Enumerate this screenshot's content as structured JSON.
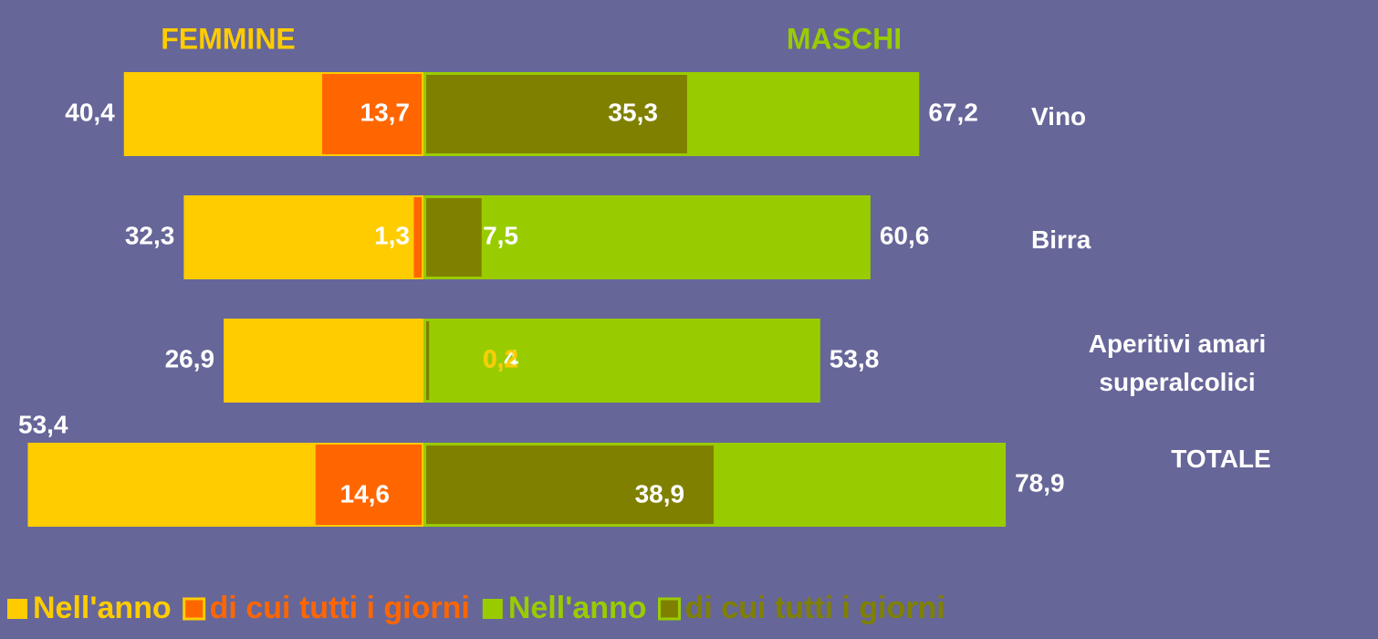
{
  "chart_data": {
    "type": "butterfly-bar",
    "left_title": "FEMMINE",
    "right_title": "MASCHI",
    "categories": [
      "Vino",
      "Birra",
      "Aperitivi amari superalcolici",
      "TOTALE"
    ],
    "series": [
      {
        "name": "Nell'anno",
        "color": "#ffcc00",
        "side": "left",
        "values": [
          40.4,
          32.3,
          26.9,
          53.4
        ],
        "value_labels": [
          "40,4",
          "32,3",
          "26,9",
          "53,4"
        ]
      },
      {
        "name": "di cui tutti i giorni",
        "color": "#ff6600",
        "side": "left",
        "values": [
          13.7,
          1.3,
          0.2,
          14.6
        ],
        "value_labels": [
          "13,7",
          "1,3",
          "0,2",
          "14,6"
        ]
      },
      {
        "name": "Nell'anno",
        "color": "#99cc00",
        "side": "right",
        "values": [
          67.2,
          60.6,
          53.8,
          78.9
        ],
        "value_labels": [
          "67,2",
          "60,6",
          "53,8",
          "78,9"
        ]
      },
      {
        "name": "di cui tutti i giorni",
        "color": "#808000",
        "side": "right",
        "values": [
          35.3,
          7.5,
          0.4,
          38.9
        ],
        "value_labels": [
          "35,3",
          "7,5",
          "0,4",
          "38,9"
        ]
      }
    ]
  }
}
